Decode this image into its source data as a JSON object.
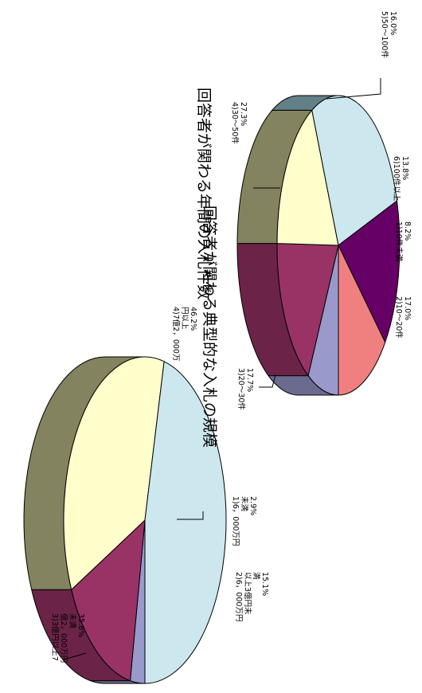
{
  "chart_data": [
    {
      "type": "pie",
      "title": "回答者が関わる年間の入札件数",
      "slices": [
        {
          "label": "1)10件未満",
          "percent_text": "8.2%",
          "value": 8.2,
          "color": "#9999cc"
        },
        {
          "label": "2)10～20件",
          "percent_text": "17.0%",
          "value": 17.0,
          "color": "#993366"
        },
        {
          "label": "3)20～30件",
          "percent_text": "17.7%",
          "value": 17.7,
          "color": "#ffffcc"
        },
        {
          "label": "4)30～50件",
          "percent_text": "27.3%",
          "value": 27.3,
          "color": "#cce8ee"
        },
        {
          "label": "5)50～100件",
          "percent_text": "16.0%",
          "value": 16.0,
          "color": "#660066"
        },
        {
          "label": "6)100件以上",
          "percent_text": "13.8%",
          "value": 13.8,
          "color": "#f08080"
        }
      ]
    },
    {
      "type": "pie",
      "title": "回答者が関わる典型的な入札の規模",
      "slices": [
        {
          "label": "1)6，000万円未満",
          "percent_text": "2.9%",
          "value": 2.9,
          "color": "#9999cc"
        },
        {
          "label": "2)6，000万円以上3億円未満",
          "percent_text": "15.1%",
          "value": 15.1,
          "color": "#993366"
        },
        {
          "label": "3)3億円以上7億2，000万円未満",
          "percent_text": "35.8%",
          "value": 35.8,
          "color": "#ffffcc"
        },
        {
          "label": "4)7億2，000万円以上",
          "percent_text": "46.2%",
          "value": 46.2,
          "color": "#cce8ee"
        }
      ]
    }
  ]
}
